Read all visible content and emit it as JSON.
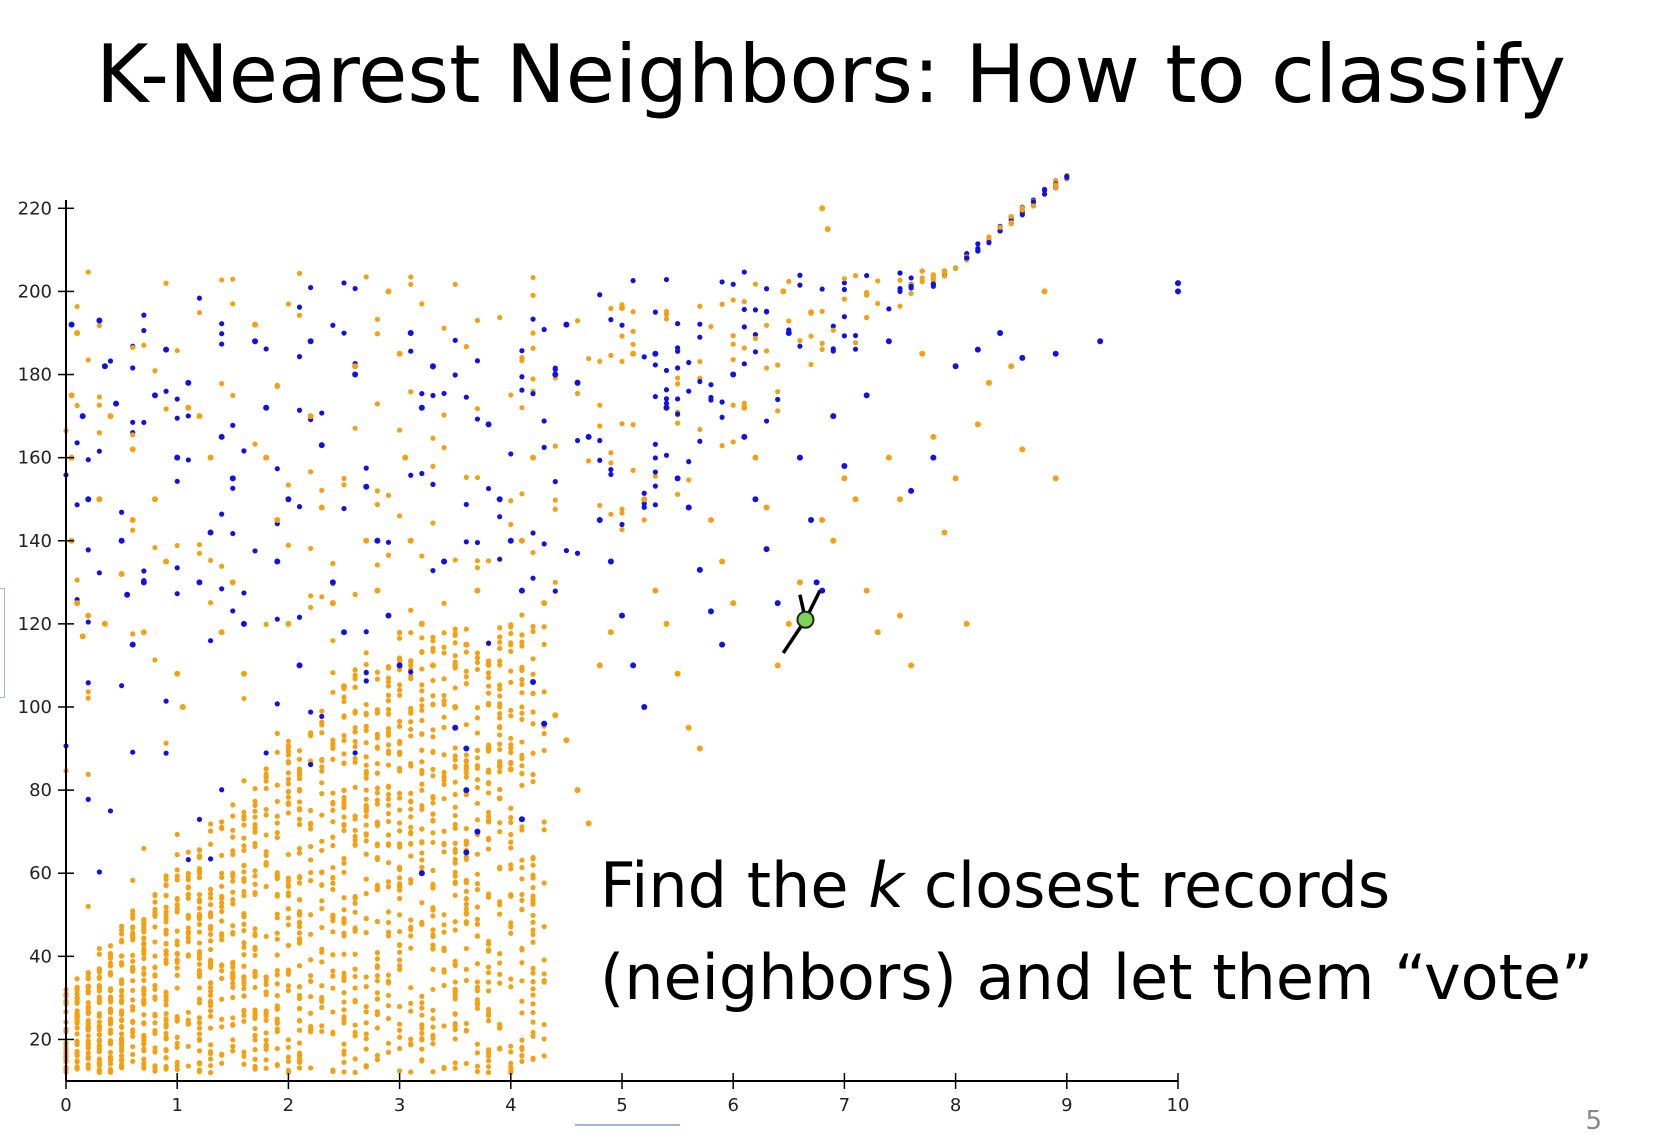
{
  "slide": {
    "title": "K-Nearest Neighbors: How to classify",
    "caption_line1_pre": "Find the ",
    "caption_line1_k": "k",
    "caption_line1_post": " closest records",
    "caption_line2": "(neighbors) and let them “vote”",
    "slide_number": "5"
  },
  "chart_data": {
    "type": "scatter",
    "title": "",
    "xlabel": "",
    "ylabel": "",
    "xlim": [
      0,
      10
    ],
    "ylim": [
      10,
      222
    ],
    "x_ticks": [
      0,
      1,
      2,
      3,
      4,
      5,
      6,
      7,
      8,
      9,
      10
    ],
    "y_ticks": [
      20,
      40,
      60,
      80,
      100,
      120,
      140,
      160,
      180,
      200,
      220
    ],
    "grid": false,
    "legend": "none",
    "colors": {
      "orange": "#F5A010",
      "blue": "#1010E8",
      "query": "#7FD35A",
      "line": "#000000"
    },
    "series": [
      {
        "color_key": "orange",
        "points": [
          [
            0.05,
            175
          ],
          [
            0.05,
            160
          ],
          [
            0.1,
            190
          ],
          [
            0.05,
            140
          ],
          [
            0.1,
            125
          ],
          [
            0.15,
            117
          ],
          [
            0.2,
            122
          ],
          [
            0.3,
            150
          ],
          [
            0.35,
            120
          ],
          [
            0.4,
            170
          ],
          [
            0.5,
            132
          ],
          [
            0.6,
            162
          ],
          [
            0.6,
            145
          ],
          [
            0.7,
            118
          ],
          [
            0.8,
            150
          ],
          [
            0.9,
            135
          ],
          [
            1.0,
            108
          ],
          [
            1.05,
            100
          ],
          [
            1.1,
            172
          ],
          [
            1.2,
            170
          ],
          [
            1.3,
            160
          ],
          [
            1.4,
            118
          ],
          [
            1.5,
            130
          ],
          [
            1.6,
            108
          ],
          [
            1.7,
            192
          ],
          [
            1.8,
            160
          ],
          [
            1.9,
            145
          ],
          [
            2.0,
            120
          ],
          [
            2.1,
            110
          ],
          [
            2.2,
            170
          ],
          [
            2.3,
            148
          ],
          [
            2.4,
            125
          ],
          [
            2.5,
            105
          ],
          [
            2.6,
            182
          ],
          [
            2.7,
            140
          ],
          [
            2.8,
            128
          ],
          [
            2.9,
            200
          ],
          [
            3.0,
            185
          ],
          [
            3.05,
            160
          ],
          [
            3.1,
            140
          ],
          [
            3.2,
            120
          ],
          [
            3.3,
            110
          ],
          [
            3.4,
            135
          ],
          [
            3.5,
            100
          ],
          [
            3.6,
            115
          ],
          [
            3.7,
            128
          ],
          [
            3.8,
            90
          ],
          [
            3.9,
            78
          ],
          [
            4.0,
            85
          ],
          [
            4.1,
            140
          ],
          [
            4.2,
            160
          ],
          [
            4.3,
            125
          ],
          [
            4.4,
            98
          ],
          [
            4.5,
            92
          ],
          [
            4.6,
            80
          ],
          [
            4.7,
            72
          ],
          [
            4.8,
            110
          ],
          [
            4.9,
            118
          ],
          [
            5.0,
            196
          ],
          [
            5.1,
            185
          ],
          [
            5.2,
            150
          ],
          [
            5.3,
            128
          ],
          [
            5.4,
            120
          ],
          [
            5.5,
            108
          ],
          [
            5.6,
            95
          ],
          [
            5.7,
            90
          ],
          [
            5.8,
            145
          ],
          [
            5.9,
            135
          ],
          [
            6.0,
            125
          ],
          [
            6.1,
            172
          ],
          [
            6.2,
            160
          ],
          [
            6.3,
            148
          ],
          [
            6.4,
            110
          ],
          [
            6.45,
            200
          ],
          [
            6.5,
            120
          ],
          [
            6.6,
            130
          ],
          [
            6.7,
            195
          ],
          [
            6.8,
            145
          ],
          [
            6.9,
            140
          ],
          [
            7.0,
            155
          ],
          [
            7.1,
            150
          ],
          [
            7.2,
            128
          ],
          [
            7.3,
            118
          ],
          [
            7.4,
            160
          ],
          [
            7.5,
            150
          ],
          [
            7.6,
            110
          ],
          [
            7.7,
            185
          ],
          [
            7.8,
            165
          ],
          [
            7.9,
            142
          ],
          [
            8.0,
            155
          ],
          [
            8.1,
            120
          ],
          [
            8.2,
            168
          ],
          [
            8.3,
            178
          ],
          [
            8.5,
            182
          ],
          [
            8.6,
            162
          ],
          [
            8.8,
            200
          ],
          [
            8.9,
            155
          ],
          [
            6.8,
            220
          ],
          [
            6.85,
            215
          ],
          [
            7.5,
            122
          ]
        ]
      },
      {
        "color_key": "blue",
        "points": [
          [
            0.05,
            192
          ],
          [
            0.15,
            170
          ],
          [
            0.2,
            150
          ],
          [
            0.3,
            193
          ],
          [
            0.35,
            182
          ],
          [
            0.45,
            173
          ],
          [
            0.5,
            140
          ],
          [
            0.55,
            127
          ],
          [
            0.6,
            115
          ],
          [
            0.7,
            130
          ],
          [
            0.8,
            175
          ],
          [
            0.9,
            186
          ],
          [
            1.0,
            160
          ],
          [
            1.1,
            178
          ],
          [
            1.2,
            130
          ],
          [
            1.3,
            142
          ],
          [
            1.4,
            165
          ],
          [
            1.5,
            155
          ],
          [
            1.6,
            120
          ],
          [
            1.7,
            188
          ],
          [
            1.8,
            172
          ],
          [
            1.9,
            135
          ],
          [
            2.0,
            150
          ],
          [
            2.1,
            110
          ],
          [
            2.2,
            188
          ],
          [
            2.3,
            163
          ],
          [
            2.4,
            130
          ],
          [
            2.5,
            118
          ],
          [
            2.6,
            180
          ],
          [
            2.7,
            153
          ],
          [
            2.8,
            140
          ],
          [
            2.9,
            122
          ],
          [
            3.0,
            110
          ],
          [
            3.1,
            190
          ],
          [
            3.2,
            172
          ],
          [
            3.3,
            182
          ],
          [
            3.4,
            135
          ],
          [
            3.5,
            95
          ],
          [
            3.6,
            80
          ],
          [
            3.7,
            70
          ],
          [
            3.8,
            168
          ],
          [
            3.9,
            150
          ],
          [
            4.0,
            140
          ],
          [
            4.1,
            128
          ],
          [
            4.2,
            106
          ],
          [
            4.3,
            96
          ],
          [
            4.4,
            180
          ],
          [
            4.5,
            192
          ],
          [
            4.6,
            178
          ],
          [
            4.7,
            165
          ],
          [
            4.8,
            145
          ],
          [
            4.9,
            135
          ],
          [
            5.0,
            122
          ],
          [
            5.1,
            110
          ],
          [
            5.2,
            100
          ],
          [
            5.3,
            185
          ],
          [
            5.4,
            172
          ],
          [
            5.5,
            155
          ],
          [
            5.6,
            148
          ],
          [
            5.7,
            133
          ],
          [
            5.8,
            123
          ],
          [
            5.9,
            115
          ],
          [
            6.0,
            180
          ],
          [
            6.1,
            165
          ],
          [
            6.2,
            150
          ],
          [
            6.3,
            138
          ],
          [
            6.4,
            125
          ],
          [
            6.5,
            190
          ],
          [
            6.6,
            160
          ],
          [
            6.7,
            145
          ],
          [
            6.75,
            130
          ],
          [
            6.8,
            128
          ],
          [
            6.9,
            170
          ],
          [
            7.0,
            158
          ],
          [
            7.2,
            175
          ],
          [
            7.4,
            188
          ],
          [
            7.6,
            152
          ],
          [
            7.8,
            160
          ],
          [
            8.0,
            182
          ],
          [
            8.2,
            186
          ],
          [
            8.4,
            190
          ],
          [
            8.6,
            184
          ],
          [
            8.9,
            185
          ],
          [
            9.3,
            188
          ],
          [
            10.0,
            202
          ],
          [
            10.0,
            200
          ],
          [
            3.2,
            60
          ],
          [
            3.6,
            65
          ],
          [
            4.1,
            73
          ],
          [
            3.6,
            90
          ]
        ]
      },
      {
        "color_key": "query",
        "points": [
          [
            6.65,
            121
          ]
        ]
      }
    ],
    "neighbor_lines": [
      [
        [
          6.65,
          121
        ],
        [
          6.45,
          113
        ]
      ],
      [
        [
          6.65,
          121
        ],
        [
          6.6,
          127
        ]
      ],
      [
        [
          6.65,
          121
        ],
        [
          6.78,
          128
        ]
      ]
    ]
  }
}
